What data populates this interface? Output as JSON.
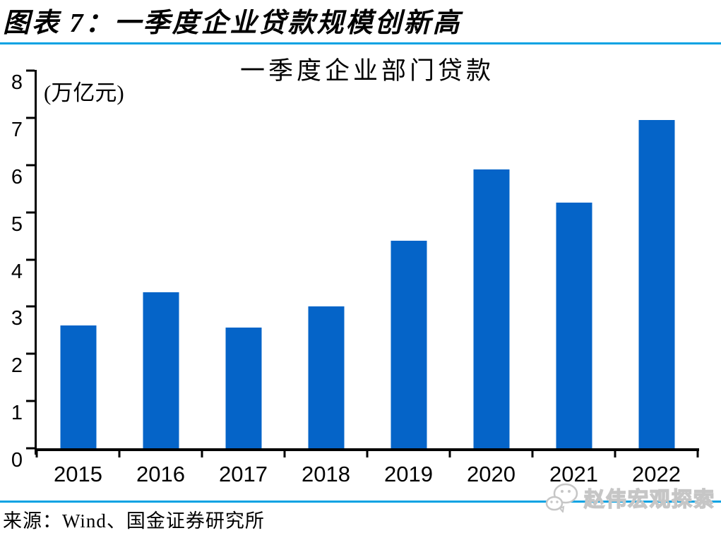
{
  "header": {
    "title": "图表 7：一季度企业贷款规模创新高"
  },
  "chart_data": {
    "type": "bar",
    "title": "一季度企业部门贷款",
    "unit_label": "(万亿元)",
    "xlabel": "",
    "ylabel": "",
    "categories": [
      "2015",
      "2016",
      "2017",
      "2018",
      "2019",
      "2020",
      "2021",
      "2022"
    ],
    "values": [
      2.6,
      3.3,
      2.55,
      3.0,
      4.4,
      5.9,
      5.2,
      6.95
    ],
    "ylim": [
      0,
      8
    ],
    "ytick_step": 1,
    "yticks": [
      0,
      1,
      2,
      3,
      4,
      5,
      6,
      7,
      8
    ],
    "grid": false,
    "legend": "none",
    "bar_color": "#0564C8"
  },
  "footer": {
    "source": "来源：Wind、国金证券研究所",
    "watermark": {
      "icon": "wechat-icon",
      "text": "赵伟宏观探索"
    }
  },
  "colors": {
    "bar": "#0564C8",
    "divider": "#05A2E3",
    "axis": "#000000",
    "watermark": "#C6C6C6"
  }
}
